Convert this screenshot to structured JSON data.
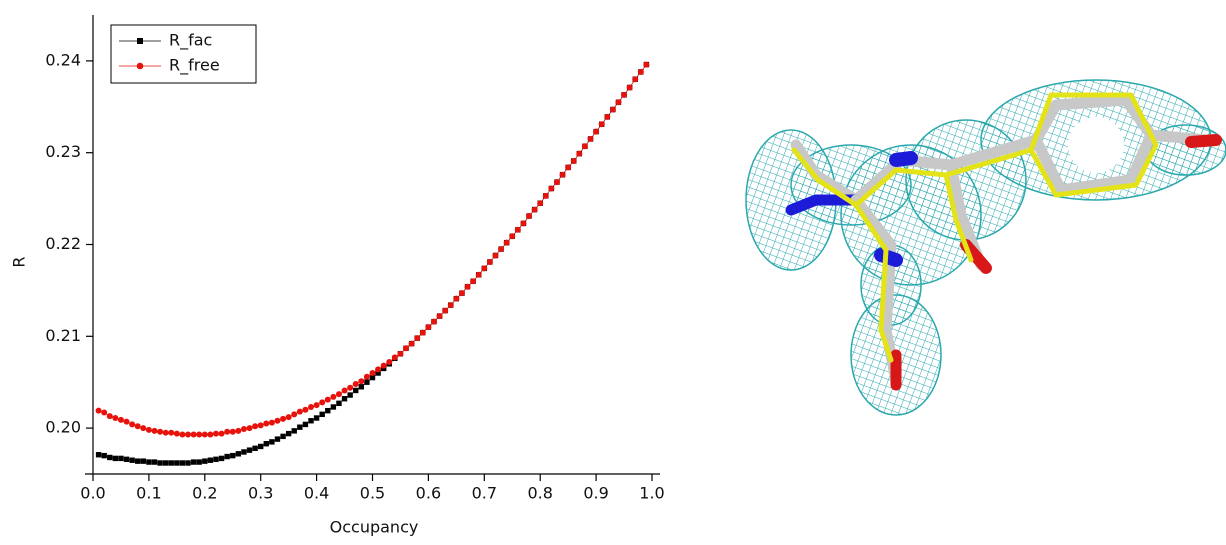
{
  "chart_data": {
    "type": "line",
    "xlabel": "Occupancy",
    "ylabel": "R",
    "xlim": [
      0,
      1
    ],
    "ylim": [
      0.195,
      0.245
    ],
    "xticks": [
      {
        "value": 0,
        "label": "0.0"
      },
      0.1,
      0.2,
      0.3,
      0.4,
      0.5,
      0.6,
      0.7,
      0.8,
      0.9,
      {
        "value": 1,
        "label": "1.0"
      }
    ],
    "yticks": [
      {
        "value": 0.2,
        "label": "0.20"
      },
      0.21,
      0.22,
      0.23,
      0.24
    ],
    "legend_position": "upper left",
    "x": [
      0.01,
      0.02,
      0.03,
      0.04,
      0.05,
      0.06,
      0.07,
      0.08,
      0.09,
      0.1,
      0.11,
      0.12,
      0.13,
      0.14,
      0.15,
      0.16,
      0.17,
      0.18,
      0.19,
      0.2,
      0.21,
      0.22,
      0.23,
      0.24,
      0.25,
      0.26,
      0.27,
      0.28,
      0.29,
      0.3,
      0.31,
      0.32,
      0.33,
      0.34,
      0.35,
      0.36,
      0.37,
      0.38,
      0.39,
      0.4,
      0.41,
      0.42,
      0.43,
      0.44,
      0.45,
      0.46,
      0.47,
      0.48,
      0.49,
      0.5,
      0.51,
      0.52,
      0.53,
      0.54,
      0.55,
      0.56,
      0.57,
      0.58,
      0.59,
      0.6,
      0.61,
      0.62,
      0.63,
      0.64,
      0.65,
      0.66,
      0.67,
      0.68,
      0.69,
      0.7,
      0.71,
      0.72,
      0.73,
      0.74,
      0.75,
      0.76,
      0.77,
      0.78,
      0.79,
      0.8,
      0.81,
      0.82,
      0.83,
      0.84,
      0.85,
      0.86,
      0.87,
      0.88,
      0.89,
      0.9,
      0.91,
      0.92,
      0.93,
      0.94,
      0.95,
      0.96,
      0.97,
      0.98,
      0.99
    ],
    "series": [
      {
        "name": "R_fac",
        "color": "#000000",
        "marker": "square",
        "values": [
          0.1971,
          0.197,
          0.1968,
          0.1967,
          0.1967,
          0.1966,
          0.1965,
          0.1964,
          0.1964,
          0.1963,
          0.1963,
          0.1962,
          0.1962,
          0.1962,
          0.1962,
          0.1962,
          0.1962,
          0.1963,
          0.1963,
          0.1964,
          0.1965,
          0.1966,
          0.1967,
          0.1969,
          0.197,
          0.1972,
          0.1974,
          0.1976,
          0.1978,
          0.198,
          0.1983,
          0.1985,
          0.1988,
          0.1991,
          0.1994,
          0.1997,
          0.2001,
          0.2004,
          0.2008,
          0.2011,
          0.2015,
          0.2019,
          0.2023,
          0.2027,
          0.2032,
          0.2036,
          0.2041,
          0.2045,
          0.205,
          0.2055,
          0.206,
          0.2065,
          0.207,
          0.2076,
          0.2081,
          0.2087,
          0.2092,
          0.2098,
          0.2104,
          0.211,
          0.2116,
          0.2122,
          0.2128,
          0.2134,
          0.2141,
          0.2147,
          0.2154,
          0.216,
          0.2167,
          0.2174,
          0.2181,
          0.2188,
          0.2195,
          0.2202,
          0.2209,
          0.2216,
          0.2223,
          0.2231,
          0.2238,
          0.2245,
          0.2253,
          0.2261,
          0.2268,
          0.2276,
          0.2284,
          0.2291,
          0.2299,
          0.2307,
          0.2315,
          0.2323,
          0.2331,
          0.2339,
          0.2347,
          0.2355,
          0.2363,
          0.2371,
          0.238,
          0.2388,
          0.2396
        ]
      },
      {
        "name": "R_free",
        "color": "#e8120c",
        "marker": "circle",
        "values": [
          0.2019,
          0.2017,
          0.2013,
          0.2011,
          0.2009,
          0.2007,
          0.2004,
          0.2002,
          0.2,
          0.1998,
          0.1997,
          0.1996,
          0.1995,
          0.1995,
          0.1994,
          0.1993,
          0.1993,
          0.1993,
          0.1993,
          0.1993,
          0.1993,
          0.1994,
          0.1994,
          0.1996,
          0.1996,
          0.1997,
          0.1999,
          0.2,
          0.2002,
          0.2003,
          0.2005,
          0.2006,
          0.2008,
          0.201,
          0.2012,
          0.2015,
          0.2018,
          0.202,
          0.2023,
          0.2025,
          0.2028,
          0.2031,
          0.2034,
          0.2037,
          0.2041,
          0.2044,
          0.2048,
          0.2051,
          0.2056,
          0.206,
          0.2064,
          0.2068,
          0.2072,
          0.2077,
          0.2081,
          0.2087,
          0.2092,
          0.2098,
          0.2104,
          0.211,
          0.2116,
          0.2122,
          0.2128,
          0.2134,
          0.2141,
          0.2147,
          0.2154,
          0.216,
          0.2167,
          0.2174,
          0.2181,
          0.2188,
          0.2195,
          0.2202,
          0.2209,
          0.2216,
          0.2223,
          0.2231,
          0.2238,
          0.2245,
          0.2253,
          0.2261,
          0.2268,
          0.2276,
          0.2284,
          0.2291,
          0.2299,
          0.2307,
          0.2315,
          0.2323,
          0.2331,
          0.2339,
          0.2347,
          0.2355,
          0.2363,
          0.2371,
          0.238,
          0.2388,
          0.2396
        ]
      }
    ]
  }
}
